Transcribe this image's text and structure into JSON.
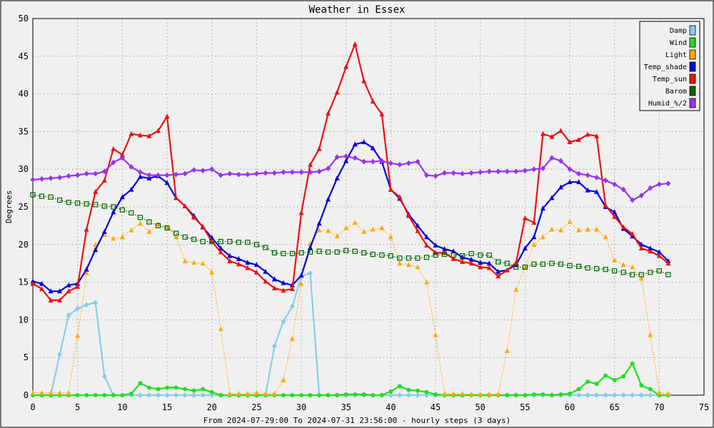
{
  "chart_data": {
    "type": "line",
    "title": "Weather in Essex",
    "xlabel": "From 2024-07-29:00 To 2024-07-31 23:56:00 - hourly steps (3 days)",
    "ylabel": "Degrees",
    "xlim": [
      0,
      75
    ],
    "ylim": [
      0,
      50
    ],
    "xticks": [
      0,
      5,
      10,
      15,
      20,
      25,
      30,
      35,
      40,
      45,
      50,
      55,
      60,
      65,
      70,
      75
    ],
    "yticks": [
      0,
      5,
      10,
      15,
      20,
      25,
      30,
      35,
      40,
      45,
      50
    ],
    "grid": true,
    "legend_position": "top-right",
    "x": [
      0,
      1,
      2,
      3,
      4,
      5,
      6,
      7,
      8,
      9,
      10,
      11,
      12,
      13,
      14,
      15,
      16,
      17,
      18,
      19,
      20,
      21,
      22,
      23,
      24,
      25,
      26,
      27,
      28,
      29,
      30,
      31,
      32,
      33,
      34,
      35,
      36,
      37,
      38,
      39,
      40,
      41,
      42,
      43,
      44,
      45,
      46,
      47,
      48,
      49,
      50,
      51,
      52,
      53,
      54,
      55,
      56,
      57,
      58,
      59,
      60,
      61,
      62,
      63,
      64,
      65,
      66,
      67,
      68,
      69,
      70,
      71
    ],
    "series": [
      {
        "name": "Damp",
        "color": "#87ceeb",
        "style": "solid",
        "marker": "diamond",
        "values": [
          0,
          0,
          0,
          5.4,
          10.6,
          11.5,
          12,
          12.3,
          2.5,
          0,
          0,
          0,
          0,
          0,
          0,
          0,
          0,
          0,
          0,
          0,
          0,
          0,
          0,
          0,
          0,
          0,
          0,
          6.5,
          9.8,
          11.8,
          15.8,
          16.2,
          0,
          0,
          0,
          0,
          0,
          0,
          0,
          0,
          0,
          0,
          0,
          0,
          0,
          0,
          0,
          0,
          0,
          0,
          0,
          0,
          0,
          0,
          0,
          0,
          0,
          0,
          0,
          0,
          0,
          0,
          0,
          0,
          0,
          0,
          0,
          0,
          0,
          0,
          0,
          0
        ]
      },
      {
        "name": "Wind",
        "color": "#22dd22",
        "style": "solid",
        "marker": "circle",
        "values": [
          0,
          0,
          0,
          0,
          0,
          0,
          0,
          0,
          0,
          0,
          0,
          0.2,
          1.6,
          1,
          0.8,
          1,
          1,
          0.8,
          0.6,
          0.8,
          0.4,
          0,
          0,
          0,
          0,
          0,
          0,
          0,
          0,
          0,
          0,
          0,
          0,
          0,
          0,
          0.1,
          0.1,
          0.1,
          0,
          0,
          0.5,
          1.2,
          0.7,
          0.6,
          0.4,
          0.1,
          0,
          0,
          0,
          0,
          0,
          0,
          0,
          0,
          0,
          0,
          0.1,
          0.1,
          0,
          0.1,
          0.2,
          0.8,
          1.8,
          1.5,
          2.6,
          2,
          2.5,
          4.2,
          1.3,
          0.8,
          0,
          0
        ]
      },
      {
        "name": "Light",
        "color": "#ffaa00",
        "style": "dotted",
        "marker": "triangle",
        "values": [
          0.3,
          0.3,
          0.3,
          0.3,
          0.3,
          7.9,
          16.2,
          20,
          21.3,
          20.8,
          21,
          21.9,
          22.8,
          21.7,
          22.7,
          22.3,
          21,
          17.8,
          17.6,
          17.5,
          16.3,
          8.8,
          0.2,
          0.2,
          0.2,
          0.3,
          0.2,
          0.2,
          2,
          7.5,
          14.8,
          20.1,
          21.9,
          21.8,
          21.1,
          22.2,
          22.9,
          21.7,
          22,
          22.2,
          21,
          17.5,
          17.3,
          17,
          15,
          8,
          0.2,
          0.2,
          0.2,
          0.1,
          0.1,
          0.1,
          0.1,
          5.9,
          14,
          17,
          20,
          21,
          22,
          21.9,
          23,
          21.9,
          22,
          22,
          21,
          17.9,
          17.3,
          17,
          15.5,
          8,
          0.3,
          0.2
        ]
      },
      {
        "name": "Temp_shade",
        "color": "#0000dd",
        "style": "solid",
        "marker": "triangle",
        "values": [
          15.1,
          14.8,
          13.8,
          13.8,
          14.6,
          14.8,
          16.7,
          19.3,
          21.7,
          24.3,
          26.3,
          27.3,
          29,
          28.8,
          29.1,
          28.2,
          26.2,
          25.1,
          23.8,
          22.3,
          20.9,
          19.5,
          18.5,
          18.1,
          17.6,
          17.3,
          16.4,
          15.4,
          14.9,
          14.6,
          15.9,
          19.6,
          22.8,
          26,
          28.8,
          31.1,
          33.3,
          33.6,
          32.8,
          31,
          27.3,
          26.1,
          24,
          22.5,
          21,
          19.9,
          19.4,
          19.1,
          18.3,
          18,
          17.6,
          17.5,
          16.4,
          16.6,
          17.3,
          19.5,
          21,
          24.8,
          26.2,
          27.6,
          28.3,
          28.3,
          27.2,
          27,
          25,
          24.3,
          22.1,
          21.1,
          20,
          19.5,
          19,
          17.8
        ]
      },
      {
        "name": "Temp_sun",
        "color": "#ee1111",
        "style": "solid",
        "marker": "triangle",
        "values": [
          14.8,
          14.1,
          12.6,
          12.6,
          13.8,
          14.4,
          22,
          27,
          28.5,
          32.7,
          31.9,
          34.7,
          34.5,
          34.4,
          35.1,
          37,
          26.2,
          25.1,
          23.6,
          22.4,
          20.4,
          19,
          17.8,
          17.4,
          16.9,
          16.3,
          15.1,
          14.2,
          13.9,
          14.1,
          24.2,
          30.6,
          32.7,
          37.4,
          40.2,
          43.6,
          46.6,
          41.7,
          39,
          37.3,
          27.3,
          26.3,
          23.8,
          21.8,
          19.9,
          18.9,
          18.9,
          18.1,
          17.7,
          17.5,
          17,
          16.9,
          15.8,
          16.6,
          17.6,
          23.5,
          22.9,
          34.7,
          34.3,
          35.1,
          33.6,
          33.9,
          34.6,
          34.4,
          25.2,
          23.7,
          22.3,
          21.4,
          19.5,
          19.1,
          18.5,
          17.5
        ]
      },
      {
        "name": "Barom",
        "color": "#006600",
        "style": "dotted",
        "marker": "square",
        "values": [
          26.6,
          26.4,
          26.3,
          25.9,
          25.6,
          25.5,
          25.4,
          25.3,
          25.1,
          25,
          24.6,
          24.2,
          23.6,
          23,
          22.5,
          22.2,
          21.5,
          21,
          20.7,
          20.4,
          20.4,
          20.4,
          20.4,
          20.3,
          20.3,
          20,
          19.6,
          18.9,
          18.8,
          18.8,
          18.9,
          19,
          19.1,
          19,
          19,
          19.2,
          19.1,
          18.9,
          18.7,
          18.6,
          18.5,
          18.2,
          18.2,
          18.2,
          18.3,
          18.6,
          18.7,
          18.6,
          18.5,
          18.8,
          18.6,
          18.6,
          17.7,
          17.5,
          17,
          17,
          17.4,
          17.4,
          17.5,
          17.4,
          17.2,
          17.1,
          16.9,
          16.8,
          16.7,
          16.5,
          16.3,
          16,
          16,
          16.3,
          16.5,
          16
        ]
      },
      {
        "name": "Humid_%/2",
        "color": "#9933ee",
        "style": "solid",
        "marker": "diamond",
        "values": [
          28.6,
          28.7,
          28.8,
          28.9,
          29.1,
          29.2,
          29.4,
          29.4,
          29.7,
          30.9,
          31.5,
          30.3,
          29.6,
          29.2,
          29.2,
          29.2,
          29.3,
          29.4,
          29.9,
          29.8,
          30,
          29.2,
          29.4,
          29.3,
          29.3,
          29.4,
          29.5,
          29.5,
          29.6,
          29.6,
          29.6,
          29.6,
          29.7,
          30.1,
          31.6,
          31.7,
          31.5,
          31,
          31,
          31.1,
          30.8,
          30.6,
          30.8,
          31,
          29.2,
          29.1,
          29.5,
          29.5,
          29.4,
          29.5,
          29.6,
          29.7,
          29.7,
          29.7,
          29.7,
          29.8,
          30,
          30.1,
          31.5,
          31.1,
          30,
          29.4,
          29.2,
          28.9,
          28.5,
          28,
          27.3,
          25.9,
          26.5,
          27.5,
          28,
          28.1
        ]
      }
    ]
  }
}
